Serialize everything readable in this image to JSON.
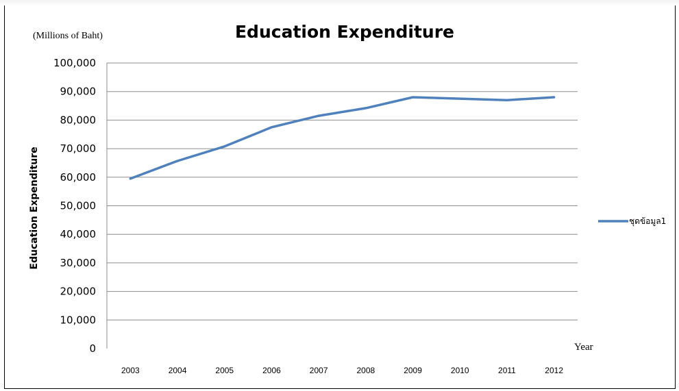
{
  "chart_data": {
    "type": "line",
    "title": "Education Expenditure",
    "unit_note": "(Millions of Baht)",
    "ylabel": "Education Expenditure",
    "xlabel": "Year",
    "ylim": [
      0,
      100000
    ],
    "yticks": [
      0,
      10000,
      20000,
      30000,
      40000,
      50000,
      60000,
      70000,
      80000,
      90000,
      100000
    ],
    "ytick_labels": [
      "0",
      "10,000",
      "20,000",
      "30,000",
      "40,000",
      "50,000",
      "60,000",
      "70,000",
      "80,000",
      "90,000",
      "100,000"
    ],
    "categories": [
      "2003",
      "2004",
      "2005",
      "2006",
      "2007",
      "2008",
      "2009",
      "2010",
      "2011",
      "2012"
    ],
    "series": [
      {
        "name": "ชุดข้อมูล1",
        "color": "#4f81bd",
        "values": [
          59500,
          65700,
          70800,
          77500,
          81500,
          84200,
          88000,
          87500,
          87000,
          88000
        ]
      }
    ],
    "grid": true,
    "legend": "right"
  }
}
